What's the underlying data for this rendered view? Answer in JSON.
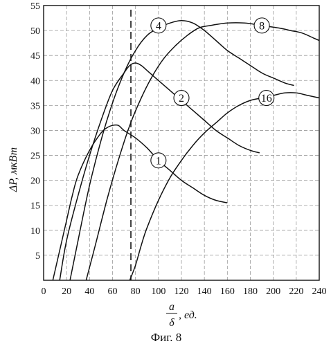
{
  "chart_data": {
    "type": "line",
    "title": "",
    "xlabel_top": "a",
    "xlabel_bottom": "δ",
    "xlabel_unit": ", ед.",
    "ylabel": "ΔP, мкВт",
    "caption": "Фиг. 8",
    "xlim": [
      0,
      240
    ],
    "ylim": [
      0,
      55
    ],
    "x_ticks": [
      0,
      20,
      40,
      60,
      80,
      100,
      120,
      140,
      160,
      180,
      200,
      220,
      240
    ],
    "y_ticks": [
      5,
      10,
      15,
      20,
      25,
      30,
      35,
      40,
      45,
      50,
      55
    ],
    "grid": true,
    "reference_line": {
      "x": 76,
      "style": "dashed"
    },
    "series": [
      {
        "name": "1",
        "label_at": [
          100,
          24
        ],
        "points": [
          [
            8,
            0
          ],
          [
            15,
            7
          ],
          [
            20,
            12
          ],
          [
            25,
            17
          ],
          [
            30,
            21
          ],
          [
            40,
            26
          ],
          [
            50,
            29.5
          ],
          [
            55,
            30.5
          ],
          [
            60,
            31
          ],
          [
            65,
            31
          ],
          [
            70,
            30
          ],
          [
            80,
            28.5
          ],
          [
            90,
            26.5
          ],
          [
            100,
            24
          ],
          [
            110,
            22
          ],
          [
            120,
            20
          ],
          [
            130,
            18.5
          ],
          [
            140,
            17
          ],
          [
            150,
            16
          ],
          [
            160,
            15.5
          ]
        ]
      },
      {
        "name": "2",
        "label_at": [
          120,
          36.5
        ],
        "points": [
          [
            14,
            0
          ],
          [
            20,
            8
          ],
          [
            30,
            17
          ],
          [
            40,
            25
          ],
          [
            50,
            32
          ],
          [
            60,
            38
          ],
          [
            70,
            41.5
          ],
          [
            75,
            43
          ],
          [
            80,
            43.5
          ],
          [
            85,
            43
          ],
          [
            90,
            42
          ],
          [
            100,
            40
          ],
          [
            110,
            38
          ],
          [
            120,
            36
          ],
          [
            130,
            34
          ],
          [
            140,
            32
          ],
          [
            150,
            30
          ],
          [
            160,
            28.5
          ],
          [
            170,
            27
          ],
          [
            180,
            26
          ],
          [
            188,
            25.5
          ]
        ]
      },
      {
        "name": "4",
        "label_at": [
          100,
          51
        ],
        "points": [
          [
            23,
            0
          ],
          [
            30,
            8
          ],
          [
            40,
            19
          ],
          [
            50,
            28
          ],
          [
            60,
            35.5
          ],
          [
            70,
            41.5
          ],
          [
            80,
            46
          ],
          [
            90,
            49
          ],
          [
            100,
            50.5
          ],
          [
            110,
            51.5
          ],
          [
            120,
            52
          ],
          [
            130,
            51.5
          ],
          [
            140,
            50
          ],
          [
            150,
            48
          ],
          [
            160,
            46
          ],
          [
            170,
            44.5
          ],
          [
            180,
            43
          ],
          [
            190,
            41.5
          ],
          [
            200,
            40.5
          ],
          [
            210,
            39.5
          ],
          [
            218,
            39
          ]
        ]
      },
      {
        "name": "8",
        "label_at": [
          190,
          51
        ],
        "points": [
          [
            37,
            0
          ],
          [
            45,
            7
          ],
          [
            55,
            16
          ],
          [
            65,
            24
          ],
          [
            75,
            31
          ],
          [
            85,
            36.5
          ],
          [
            95,
            41
          ],
          [
            105,
            44.5
          ],
          [
            115,
            47
          ],
          [
            125,
            49
          ],
          [
            135,
            50.5
          ],
          [
            145,
            51
          ],
          [
            160,
            51.5
          ],
          [
            175,
            51.5
          ],
          [
            190,
            51
          ],
          [
            205,
            50.5
          ],
          [
            215,
            50
          ],
          [
            225,
            49.5
          ],
          [
            235,
            48.5
          ],
          [
            240,
            48
          ]
        ]
      },
      {
        "name": "16",
        "label_at": [
          194,
          36.5
        ],
        "points": [
          [
            75,
            0
          ],
          [
            80,
            3
          ],
          [
            85,
            7
          ],
          [
            90,
            10.5
          ],
          [
            100,
            16
          ],
          [
            110,
            20.5
          ],
          [
            120,
            24
          ],
          [
            130,
            27
          ],
          [
            140,
            29.5
          ],
          [
            150,
            31.5
          ],
          [
            160,
            33.5
          ],
          [
            170,
            35
          ],
          [
            180,
            36
          ],
          [
            190,
            36.5
          ],
          [
            200,
            37
          ],
          [
            210,
            37.5
          ],
          [
            220,
            37.5
          ],
          [
            230,
            37
          ],
          [
            240,
            36.5
          ]
        ]
      }
    ]
  }
}
